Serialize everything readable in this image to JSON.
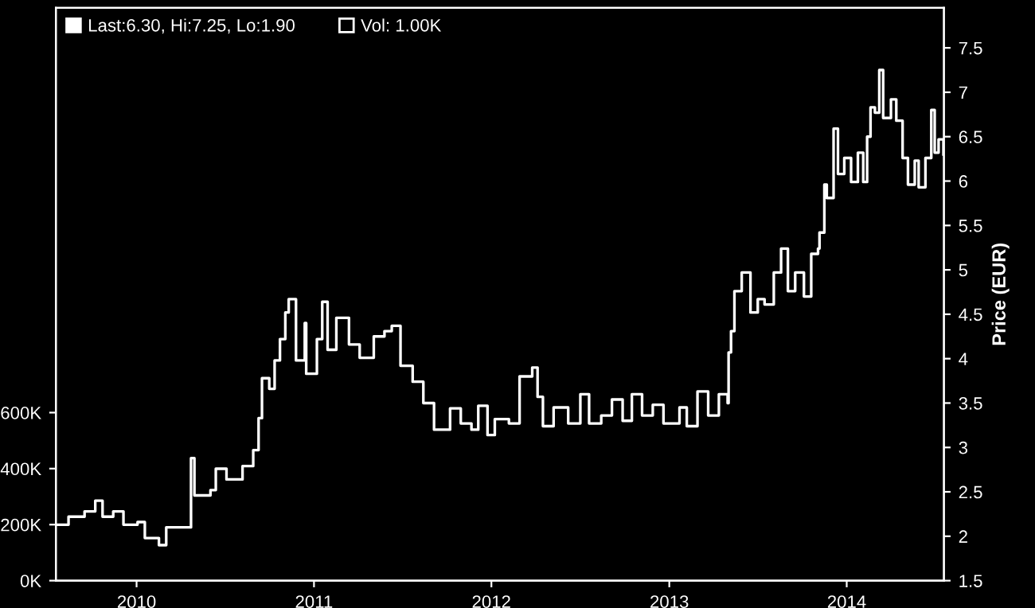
{
  "chart_data": {
    "type": "step",
    "ylabel": "Price (EUR)",
    "legend": "top left",
    "grid": false,
    "marker": "none",
    "line_style": "solid",
    "xlim": [
      "2009-07-19",
      "2014-07-20"
    ],
    "xticks": [
      "2010",
      "2011",
      "2012",
      "2013",
      "2014"
    ],
    "ylim": [
      1.5,
      7.95
    ],
    "yticks": [
      1.5,
      2,
      2.5,
      3,
      3.5,
      4,
      4.5,
      5,
      5.5,
      6,
      6.5,
      7,
      7.5
    ],
    "y2lim": [
      0,
      2045000
    ],
    "y2ticks": [
      {
        "value": 0,
        "label": "0K"
      },
      {
        "value": 200000,
        "label": "200K"
      },
      {
        "value": 400000,
        "label": "400K"
      },
      {
        "value": 600000,
        "label": "600K"
      }
    ],
    "series": [
      {
        "name": "Last:6.30, Hi:7.25, Lo:1.90",
        "color": "#ffffff",
        "x": [
          "2009-07-20",
          "2009-08-14",
          "2009-09-16",
          "2009-10-08",
          "2009-10-23",
          "2009-11-14",
          "2009-12-05",
          "2010-01-03",
          "2010-01-18",
          "2010-02-16",
          "2010-03-03",
          "2010-03-29",
          "2010-04-16",
          "2010-04-23",
          "2010-04-30",
          "2010-06-02",
          "2010-06-13",
          "2010-07-05",
          "2010-08-07",
          "2010-08-18",
          "2010-08-29",
          "2010-09-09",
          "2010-09-16",
          "2010-10-01",
          "2010-10-12",
          "2010-10-23",
          "2010-11-03",
          "2010-11-10",
          "2010-11-25",
          "2010-12-13",
          "2010-12-16",
          "2011-01-07",
          "2011-01-18",
          "2011-01-29",
          "2011-02-16",
          "2011-03-14",
          "2011-04-05",
          "2011-05-04",
          "2011-05-26",
          "2011-06-10",
          "2011-06-28",
          "2011-07-23",
          "2011-08-14",
          "2011-09-05",
          "2011-10-08",
          "2011-10-30",
          "2011-11-21",
          "2011-12-05",
          "2011-12-24",
          "2012-01-08",
          "2012-02-06",
          "2012-02-28",
          "2012-03-25",
          "2012-04-05",
          "2012-04-16",
          "2012-05-08",
          "2012-06-07",
          "2012-07-02",
          "2012-07-20",
          "2012-08-14",
          "2012-09-05",
          "2012-09-27",
          "2012-10-16",
          "2012-11-06",
          "2012-11-28",
          "2012-12-20",
          "2013-01-04",
          "2013-01-22",
          "2013-02-06",
          "2013-02-28",
          "2013-03-22",
          "2013-04-13",
          "2013-05-01",
          "2013-05-03",
          "2013-05-08",
          "2013-05-15",
          "2013-05-30",
          "2013-06-17",
          "2013-07-02",
          "2013-07-16",
          "2013-08-04",
          "2013-08-19",
          "2013-09-02",
          "2013-09-17",
          "2013-10-05",
          "2013-10-20",
          "2013-11-03",
          "2013-11-06",
          "2013-11-16",
          "2013-11-21",
          "2013-12-05",
          "2013-12-14",
          "2013-12-27",
          "2014-01-10",
          "2014-01-24",
          "2014-02-04",
          "2014-02-12",
          "2014-02-19",
          "2014-02-28",
          "2014-03-09",
          "2014-03-17",
          "2014-04-02",
          "2014-04-13",
          "2014-04-26",
          "2014-05-07",
          "2014-05-21",
          "2014-05-29",
          "2014-06-12",
          "2014-06-24",
          "2014-07-01",
          "2014-07-09",
          "2014-07-19"
        ],
        "values": [
          2.13,
          2.22,
          2.28,
          2.4,
          2.22,
          2.28,
          2.13,
          2.16,
          1.98,
          1.9,
          2.1,
          2.1,
          2.1,
          2.88,
          2.46,
          2.52,
          2.76,
          2.64,
          2.79,
          2.79,
          2.97,
          3.33,
          3.78,
          3.66,
          3.98,
          4.22,
          4.52,
          4.67,
          3.98,
          4.4,
          3.83,
          4.22,
          4.64,
          4.1,
          4.46,
          4.16,
          4.01,
          4.25,
          4.31,
          4.37,
          3.92,
          3.74,
          3.5,
          3.2,
          3.44,
          3.27,
          3.2,
          3.47,
          3.14,
          3.32,
          3.27,
          3.8,
          3.9,
          3.57,
          3.24,
          3.45,
          3.27,
          3.6,
          3.27,
          3.36,
          3.54,
          3.3,
          3.6,
          3.36,
          3.48,
          3.27,
          3.27,
          3.45,
          3.24,
          3.63,
          3.36,
          3.6,
          3.5,
          4.07,
          4.31,
          4.76,
          4.97,
          4.52,
          4.67,
          4.61,
          4.97,
          5.24,
          4.76,
          4.97,
          4.7,
          5.18,
          5.24,
          5.42,
          5.96,
          5.81,
          6.59,
          6.08,
          6.26,
          5.99,
          6.32,
          5.99,
          6.5,
          6.83,
          6.77,
          7.25,
          6.71,
          6.92,
          6.68,
          6.26,
          5.96,
          6.23,
          5.93,
          6.26,
          6.8,
          6.32,
          6.47,
          6.3
        ]
      },
      {
        "name": "Vol: 1.00K",
        "color": "#000000"
      }
    ]
  }
}
